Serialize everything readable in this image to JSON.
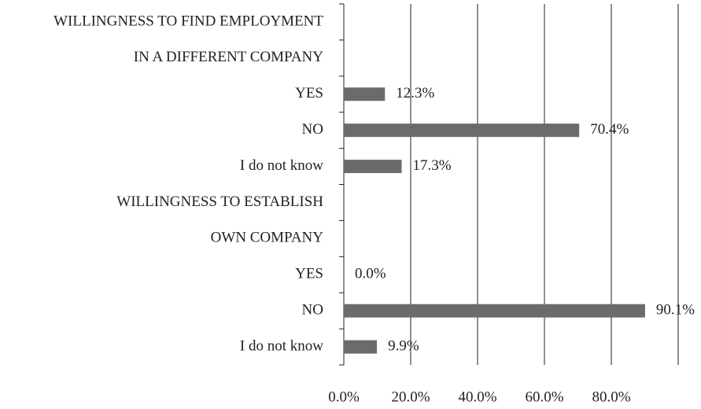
{
  "chart_data": {
    "type": "bar",
    "orientation": "horizontal",
    "categories": [
      "WILLINGNESS TO FIND EMPLOYMENT",
      "IN A DIFFERENT COMPANY",
      "YES",
      "NO",
      "I do not know",
      "WILLINGNESS TO ESTABLISH",
      "OWN COMPANY",
      "YES",
      "NO",
      "I do not know"
    ],
    "values": [
      null,
      null,
      12.3,
      70.4,
      17.3,
      null,
      null,
      0.0,
      90.1,
      9.9
    ],
    "value_labels": [
      null,
      null,
      "12.3%",
      "70.4%",
      "17.3%",
      null,
      null,
      "0.0%",
      "90.1%",
      "9.9%"
    ],
    "color": "#6b6b6b",
    "xlim": [
      0,
      100
    ],
    "xticks": [
      {
        "value": 0,
        "label": "0.0%"
      },
      {
        "value": 20,
        "label": "20.0%"
      },
      {
        "value": 40,
        "label": "40.0%"
      },
      {
        "value": 60,
        "label": "60.0%"
      },
      {
        "value": 80,
        "label": "80.0%"
      }
    ],
    "grid": true
  }
}
